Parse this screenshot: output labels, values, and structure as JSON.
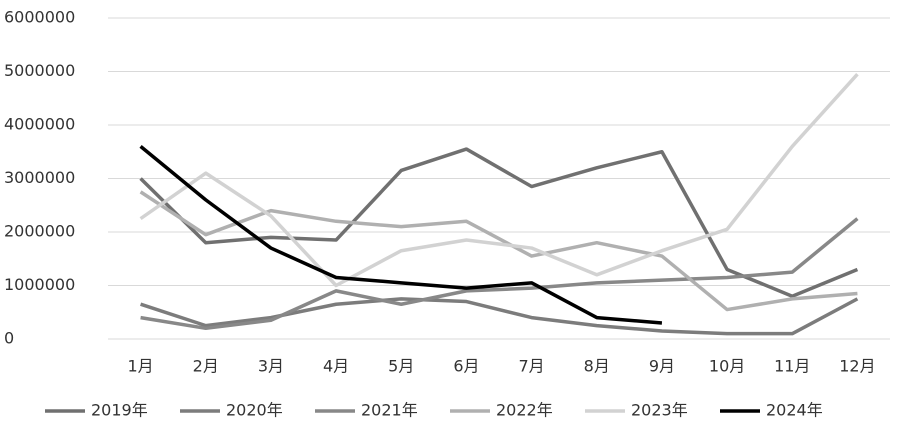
{
  "chart_data": {
    "type": "line",
    "categories": [
      "1月",
      "2月",
      "3月",
      "4月",
      "5月",
      "6月",
      "7月",
      "8月",
      "9月",
      "10月",
      "11月",
      "12月"
    ],
    "series": [
      {
        "name": "2019年",
        "color": "#707070",
        "values": [
          3000000,
          1800000,
          1900000,
          1850000,
          3150000,
          3550000,
          2850000,
          3200000,
          3500000,
          1300000,
          800000,
          1300000
        ]
      },
      {
        "name": "2020年",
        "color": "#7c7c7c",
        "values": [
          650000,
          250000,
          400000,
          650000,
          750000,
          700000,
          400000,
          250000,
          150000,
          100000,
          100000,
          750000
        ]
      },
      {
        "name": "2021年",
        "color": "#888888",
        "values": [
          400000,
          200000,
          350000,
          900000,
          650000,
          900000,
          950000,
          1050000,
          1100000,
          1150000,
          1250000,
          2250000
        ]
      },
      {
        "name": "2022年",
        "color": "#b0b0b0",
        "values": [
          2750000,
          1950000,
          2400000,
          2200000,
          2100000,
          2200000,
          1550000,
          1800000,
          1550000,
          550000,
          750000,
          850000
        ]
      },
      {
        "name": "2023年",
        "color": "#d2d2d2",
        "values": [
          2250000,
          3100000,
          2300000,
          1000000,
          1650000,
          1850000,
          1700000,
          1200000,
          1650000,
          2050000,
          3600000,
          4950000
        ]
      },
      {
        "name": "2024年",
        "color": "#000000",
        "values": [
          3600000,
          2600000,
          1700000,
          1150000,
          1050000,
          950000,
          1050000,
          400000,
          300000,
          null,
          null,
          null
        ]
      }
    ],
    "ylim": [
      0,
      6000000
    ],
    "yticks": [
      0,
      1000000,
      2000000,
      3000000,
      4000000,
      5000000,
      6000000
    ],
    "grid": true,
    "legend": "bottom"
  }
}
